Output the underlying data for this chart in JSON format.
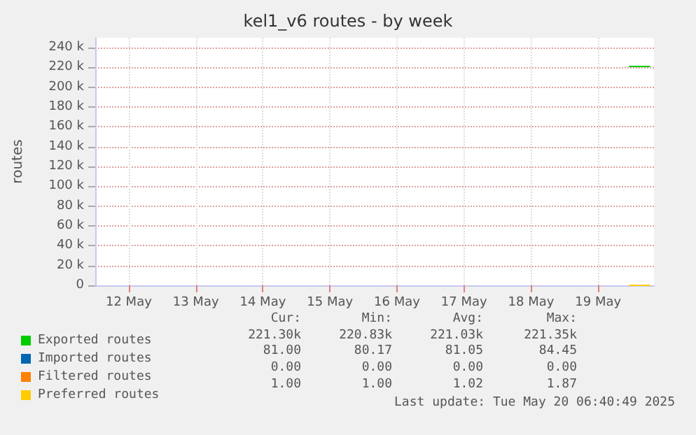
{
  "chart_data": {
    "type": "line",
    "title": "kel1_v6 routes - by week",
    "ylabel": "routes",
    "xlim": [
      "2025-05-12T00:00",
      "2025-05-20T08:00"
    ],
    "xticks": [
      {
        "value": "2025-05-12T12:00",
        "label": "12 May"
      },
      {
        "value": "2025-05-13T12:00",
        "label": "13 May"
      },
      {
        "value": "2025-05-14T12:00",
        "label": "14 May"
      },
      {
        "value": "2025-05-15T12:00",
        "label": "15 May"
      },
      {
        "value": "2025-05-16T12:00",
        "label": "16 May"
      },
      {
        "value": "2025-05-17T12:00",
        "label": "17 May"
      },
      {
        "value": "2025-05-18T12:00",
        "label": "18 May"
      },
      {
        "value": "2025-05-19T12:00",
        "label": "19 May"
      }
    ],
    "ylim": [
      0,
      250000
    ],
    "yticks": [
      {
        "value": 0,
        "label": "0"
      },
      {
        "value": 20000,
        "label": "20 k"
      },
      {
        "value": 40000,
        "label": "40 k"
      },
      {
        "value": 60000,
        "label": "60 k"
      },
      {
        "value": 80000,
        "label": "80 k"
      },
      {
        "value": 100000,
        "label": "100 k"
      },
      {
        "value": 120000,
        "label": "120 k"
      },
      {
        "value": 140000,
        "label": "140 k"
      },
      {
        "value": 160000,
        "label": "160 k"
      },
      {
        "value": 180000,
        "label": "180 k"
      },
      {
        "value": 200000,
        "label": "200 k"
      },
      {
        "value": 220000,
        "label": "220 k"
      },
      {
        "value": 240000,
        "label": "240 k"
      }
    ],
    "x": [
      "2025-05-19T23:00",
      "2025-05-20T03:00",
      "2025-05-20T06:40"
    ],
    "series": [
      {
        "name": "Exported routes",
        "color": "#00cc00",
        "values": [
          221000,
          221000,
          221000
        ]
      },
      {
        "name": "Imported routes",
        "color": "#0066b3",
        "values": [
          null,
          null,
          null
        ]
      },
      {
        "name": "Filtered routes",
        "color": "#ff8000",
        "values": [
          null,
          null,
          null
        ]
      },
      {
        "name": "Preferred routes",
        "color": "#ffcc00",
        "values": [
          0,
          0,
          0
        ]
      }
    ],
    "grid": true,
    "legend": "bottom left",
    "marker": "none",
    "line_style": "solid",
    "annotations": [
      "Cur:",
      "Min:",
      "Avg:",
      "Max:",
      "221.30k",
      "220.83k",
      "221.03k",
      "221.35k",
      "81.00",
      "80.17",
      "81.05",
      "84.45",
      "0.00",
      "0.00",
      "0.00",
      "0.00",
      "1.00",
      "1.00",
      "1.02",
      "1.87",
      "Last update: Tue May 20 06:40:49 2025"
    ]
  }
}
